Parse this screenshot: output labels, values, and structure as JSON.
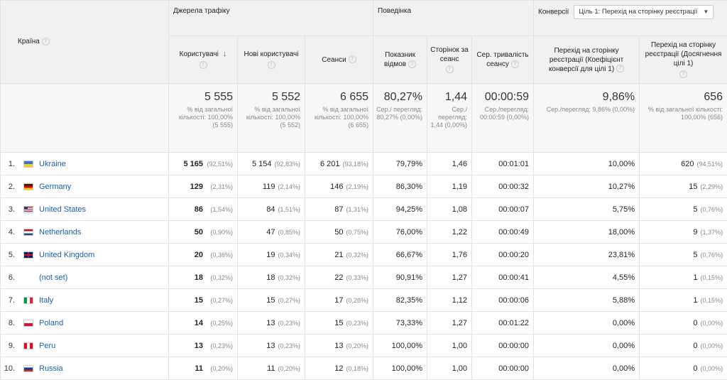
{
  "groups": {
    "traffic": "Джерела трафіку",
    "behavior": "Поведінка",
    "conversions": "Конверсії",
    "goal_select": "Ціль 1: Перехід на сторінку реєстрації"
  },
  "columns": {
    "country": "Країна",
    "users": "Користувачі",
    "new_users": "Нові користувачі",
    "sessions": "Сеанси",
    "bounce": "Показник відмов",
    "pages": "Сторінок за сеанс",
    "duration": "Сер. тривалість сеансу",
    "conv_rate": "Перехід на сторінку реєстрації (Коефіцієнт конверсії для цілі 1)",
    "completions": "Перехід на сторінку реєстрації (Досягнення цілі 1)"
  },
  "totals": {
    "users": {
      "value": "5 555",
      "sub": "% від загальної кількості: 100,00% (5 555)"
    },
    "new_users": {
      "value": "5 552",
      "sub": "% від загальної кількості: 100,00% (5 552)"
    },
    "sessions": {
      "value": "6 655",
      "sub": "% від загальної кількості: 100,00% (6 655)"
    },
    "bounce": {
      "value": "80,27%",
      "sub": "Сер./ перегляд: 80,27% (0,00%)"
    },
    "pages": {
      "value": "1,44",
      "sub": "Сер./ перегляд: 1,44 (0,00%)"
    },
    "duration": {
      "value": "00:00:59",
      "sub": "Сер./перегляд: 00:00:59 (0,00%)"
    },
    "conv_rate": {
      "value": "9,86%",
      "sub": "Сер./перегляд: 9,86% (0,00%)"
    },
    "completions": {
      "value": "656",
      "sub": "% від загальної кількості: 100,00% (656)"
    }
  },
  "rows": [
    {
      "n": "1.",
      "flag": "ua",
      "country": "Ukraine",
      "users": "5 165",
      "users_pct": "(92,51%)",
      "new_users": "5 154",
      "new_users_pct": "(92,83%)",
      "sessions": "6 201",
      "sessions_pct": "(93,18%)",
      "bounce": "79,79%",
      "pages": "1,46",
      "duration": "00:01:01",
      "conv_rate": "10,00%",
      "completions": "620",
      "completions_pct": "(94,51%)"
    },
    {
      "n": "2.",
      "flag": "de",
      "country": "Germany",
      "users": "129",
      "users_pct": "(2,31%)",
      "new_users": "119",
      "new_users_pct": "(2,14%)",
      "sessions": "146",
      "sessions_pct": "(2,19%)",
      "bounce": "86,30%",
      "pages": "1,19",
      "duration": "00:00:32",
      "conv_rate": "10,27%",
      "completions": "15",
      "completions_pct": "(2,29%)"
    },
    {
      "n": "3.",
      "flag": "us",
      "country": "United States",
      "users": "86",
      "users_pct": "(1,54%)",
      "new_users": "84",
      "new_users_pct": "(1,51%)",
      "sessions": "87",
      "sessions_pct": "(1,31%)",
      "bounce": "94,25%",
      "pages": "1,08",
      "duration": "00:00:07",
      "conv_rate": "5,75%",
      "completions": "5",
      "completions_pct": "(0,76%)"
    },
    {
      "n": "4.",
      "flag": "nl",
      "country": "Netherlands",
      "users": "50",
      "users_pct": "(0,90%)",
      "new_users": "47",
      "new_users_pct": "(0,85%)",
      "sessions": "50",
      "sessions_pct": "(0,75%)",
      "bounce": "76,00%",
      "pages": "1,22",
      "duration": "00:00:49",
      "conv_rate": "18,00%",
      "completions": "9",
      "completions_pct": "(1,37%)"
    },
    {
      "n": "5.",
      "flag": "gb",
      "country": "United Kingdom",
      "users": "20",
      "users_pct": "(0,36%)",
      "new_users": "19",
      "new_users_pct": "(0,34%)",
      "sessions": "21",
      "sessions_pct": "(0,32%)",
      "bounce": "66,67%",
      "pages": "1,76",
      "duration": "00:00:20",
      "conv_rate": "23,81%",
      "completions": "5",
      "completions_pct": "(0,76%)"
    },
    {
      "n": "6.",
      "flag": "none",
      "country": "(not set)",
      "users": "18",
      "users_pct": "(0,32%)",
      "new_users": "18",
      "new_users_pct": "(0,32%)",
      "sessions": "22",
      "sessions_pct": "(0,33%)",
      "bounce": "90,91%",
      "pages": "1,27",
      "duration": "00:00:41",
      "conv_rate": "4,55%",
      "completions": "1",
      "completions_pct": "(0,15%)"
    },
    {
      "n": "7.",
      "flag": "it",
      "country": "Italy",
      "users": "15",
      "users_pct": "(0,27%)",
      "new_users": "15",
      "new_users_pct": "(0,27%)",
      "sessions": "17",
      "sessions_pct": "(0,26%)",
      "bounce": "82,35%",
      "pages": "1,12",
      "duration": "00:00:06",
      "conv_rate": "5,88%",
      "completions": "1",
      "completions_pct": "(0,15%)"
    },
    {
      "n": "8.",
      "flag": "pl",
      "country": "Poland",
      "users": "14",
      "users_pct": "(0,25%)",
      "new_users": "13",
      "new_users_pct": "(0,23%)",
      "sessions": "15",
      "sessions_pct": "(0,23%)",
      "bounce": "73,33%",
      "pages": "1,27",
      "duration": "00:01:22",
      "conv_rate": "0,00%",
      "completions": "0",
      "completions_pct": "(0,00%)"
    },
    {
      "n": "9.",
      "flag": "pe",
      "country": "Peru",
      "users": "13",
      "users_pct": "(0,23%)",
      "new_users": "13",
      "new_users_pct": "(0,23%)",
      "sessions": "13",
      "sessions_pct": "(0,20%)",
      "bounce": "100,00%",
      "pages": "1,00",
      "duration": "00:00:00",
      "conv_rate": "0,00%",
      "completions": "0",
      "completions_pct": "(0,00%)"
    },
    {
      "n": "10.",
      "flag": "ru",
      "country": "Russia",
      "users": "11",
      "users_pct": "(0,20%)",
      "new_users": "11",
      "new_users_pct": "(0,20%)",
      "sessions": "12",
      "sessions_pct": "(0,18%)",
      "bounce": "100,00%",
      "pages": "1,00",
      "duration": "00:00:00",
      "conv_rate": "0,00%",
      "completions": "0",
      "completions_pct": "(0,00%)"
    }
  ]
}
